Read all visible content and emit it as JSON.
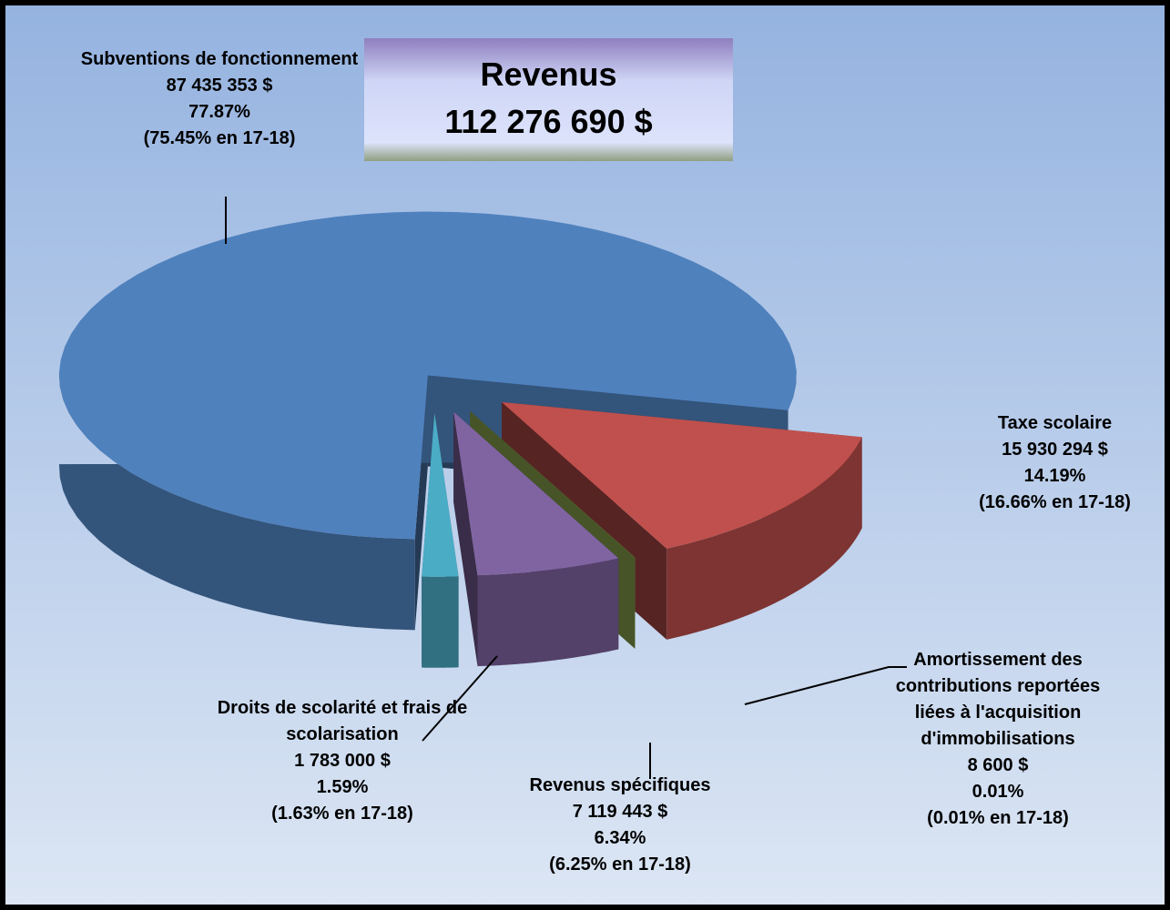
{
  "chart_data": {
    "type": "pie",
    "title": "Revenus",
    "subtitle": "112 276 690 $",
    "categories": [
      "Subventions de fonctionnement",
      "Taxe scolaire",
      "Amortissement des contributions reportées liées à l'acquisition d'immobilisations",
      "Revenus spécifiques",
      "Droits de scolarité et frais de scolarisation"
    ],
    "values": [
      77.87,
      14.19,
      0.01,
      6.34,
      1.59
    ],
    "value_labels": [
      "77.87%",
      "14.19%",
      "0.01%",
      "6.34%",
      "1.59%"
    ],
    "amount_labels": [
      "87 435 353 $",
      "15 930 294 $",
      "8 600 $",
      "7 119 443 $",
      "1 783 000 $"
    ],
    "previous_labels": [
      "(75.45% en  17-18)",
      "(16.66% en  17-18)",
      "(0.01% en  17-18)",
      "(6.25% en  17-18)",
      "(1.63% en  17-18)"
    ],
    "colors": [
      "#4f81bd",
      "#c0504d",
      "#9bbb59",
      "#8064a2",
      "#4bacc6"
    ]
  }
}
